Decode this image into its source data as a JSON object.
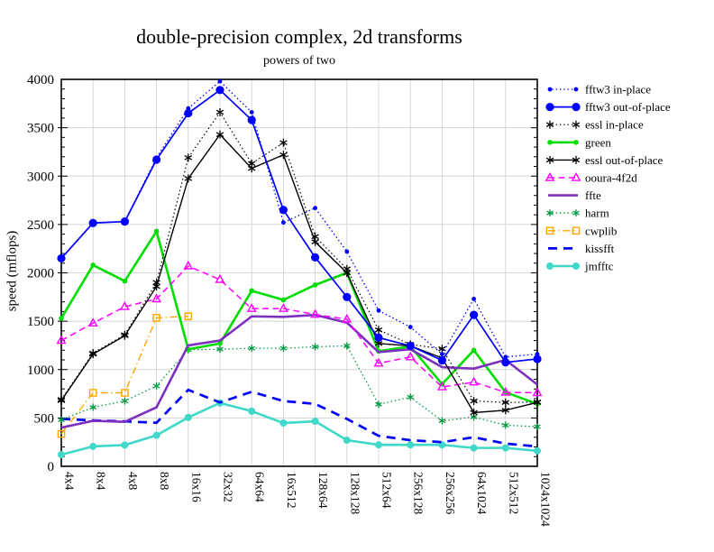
{
  "page": {
    "background": "#ffffff"
  },
  "chart_data": {
    "type": "line",
    "title": "double-precision complex, 2d transforms",
    "subtitle": "powers of two",
    "ylabel": "speed (mflops)",
    "xlabel": "",
    "ylim": [
      0,
      4000
    ],
    "ytick_major": 500,
    "ytick_minor": 100,
    "grid": true,
    "legend_position": "right",
    "categories": [
      "4x4",
      "8x4",
      "4x8",
      "8x8",
      "16x16",
      "32x32",
      "64x64",
      "16x512",
      "128x64",
      "128x128",
      "512x64",
      "256x128",
      "256x256",
      "64x1024",
      "512x512",
      "1024x1024"
    ],
    "series": [
      {
        "name": "fftw3 in-place",
        "color": "#0000ff",
        "line": "dotted",
        "width": 1.3,
        "marker": "dot",
        "marker_size": 2.4,
        "values": [
          2150,
          2520,
          2530,
          3190,
          3700,
          3980,
          3660,
          2520,
          2670,
          2220,
          1610,
          1440,
          1160,
          1730,
          1130,
          1160
        ]
      },
      {
        "name": "fftw3 out-of-place",
        "color": "#0000ff",
        "line": "solid",
        "width": 1.7,
        "marker": "circle",
        "marker_size": 4.6,
        "values": [
          2150,
          2515,
          2530,
          3170,
          3650,
          3890,
          3580,
          2650,
          2160,
          1750,
          1330,
          1245,
          1095,
          1565,
          1075,
          1110
        ]
      },
      {
        "name": "essl in-place",
        "color": "#000000",
        "line": "dotted",
        "width": 1.2,
        "marker": "asterisk",
        "marker_size": 4.5,
        "values": [
          690,
          1170,
          1360,
          1900,
          3190,
          3660,
          3130,
          3345,
          2375,
          2040,
          1410,
          1260,
          1215,
          675,
          660,
          665
        ]
      },
      {
        "name": "green",
        "color": "#00dd00",
        "line": "solid",
        "width": 2.6,
        "marker": "dot",
        "marker_size": 2.8,
        "values": [
          1530,
          2080,
          1915,
          2430,
          1210,
          1270,
          1815,
          1720,
          1875,
          2000,
          1190,
          1240,
          850,
          1200,
          765,
          645
        ]
      },
      {
        "name": "essl out-of-place",
        "color": "#000000",
        "line": "solid",
        "width": 1.4,
        "marker": "asterisk",
        "marker_size": 4.5,
        "values": [
          680,
          1160,
          1350,
          1860,
          2975,
          3430,
          3080,
          3220,
          2320,
          2000,
          1270,
          1245,
          1120,
          555,
          580,
          660
        ]
      },
      {
        "name": "ooura-4f2d",
        "color": "#ff00ff",
        "line": "dashed",
        "width": 1.5,
        "marker": "triangle",
        "marker_size": 4.6,
        "values": [
          1300,
          1480,
          1650,
          1730,
          2070,
          1930,
          1630,
          1630,
          1570,
          1520,
          1065,
          1130,
          820,
          870,
          765,
          760
        ]
      },
      {
        "name": "ffte",
        "color": "#7d2fbf",
        "line": "solid",
        "width": 2.6,
        "marker": "none",
        "marker_size": 0,
        "values": [
          400,
          470,
          460,
          610,
          1250,
          1300,
          1550,
          1545,
          1565,
          1485,
          1180,
          1210,
          1025,
          1010,
          1100,
          845
        ]
      },
      {
        "name": "harm",
        "color": "#009940",
        "line": "dotted",
        "width": 1.3,
        "marker": "asterisk",
        "marker_size": 4.0,
        "values": [
          480,
          610,
          675,
          830,
          1205,
          1210,
          1220,
          1220,
          1235,
          1245,
          640,
          715,
          470,
          510,
          425,
          410
        ]
      },
      {
        "name": "cwplib",
        "color": "#ffa500",
        "line": "dashdot",
        "width": 1.4,
        "marker": "square",
        "marker_size": 3.6,
        "values": [
          335,
          760,
          760,
          1535,
          1550,
          null,
          null,
          null,
          null,
          null,
          null,
          null,
          null,
          null,
          null,
          null
        ]
      },
      {
        "name": "kissfft",
        "color": "#0000ff",
        "line": "dashed2",
        "width": 2.7,
        "marker": "none",
        "marker_size": 0,
        "values": [
          490,
          475,
          465,
          450,
          790,
          660,
          770,
          675,
          645,
          490,
          315,
          270,
          250,
          300,
          235,
          205
        ]
      },
      {
        "name": "jmfftc",
        "color": "#40d8c8",
        "line": "solid",
        "width": 2.6,
        "marker": "circle",
        "marker_size": 4.0,
        "values": [
          120,
          206,
          220,
          320,
          505,
          655,
          570,
          447,
          466,
          270,
          222,
          222,
          222,
          190,
          190,
          160
        ]
      }
    ]
  }
}
